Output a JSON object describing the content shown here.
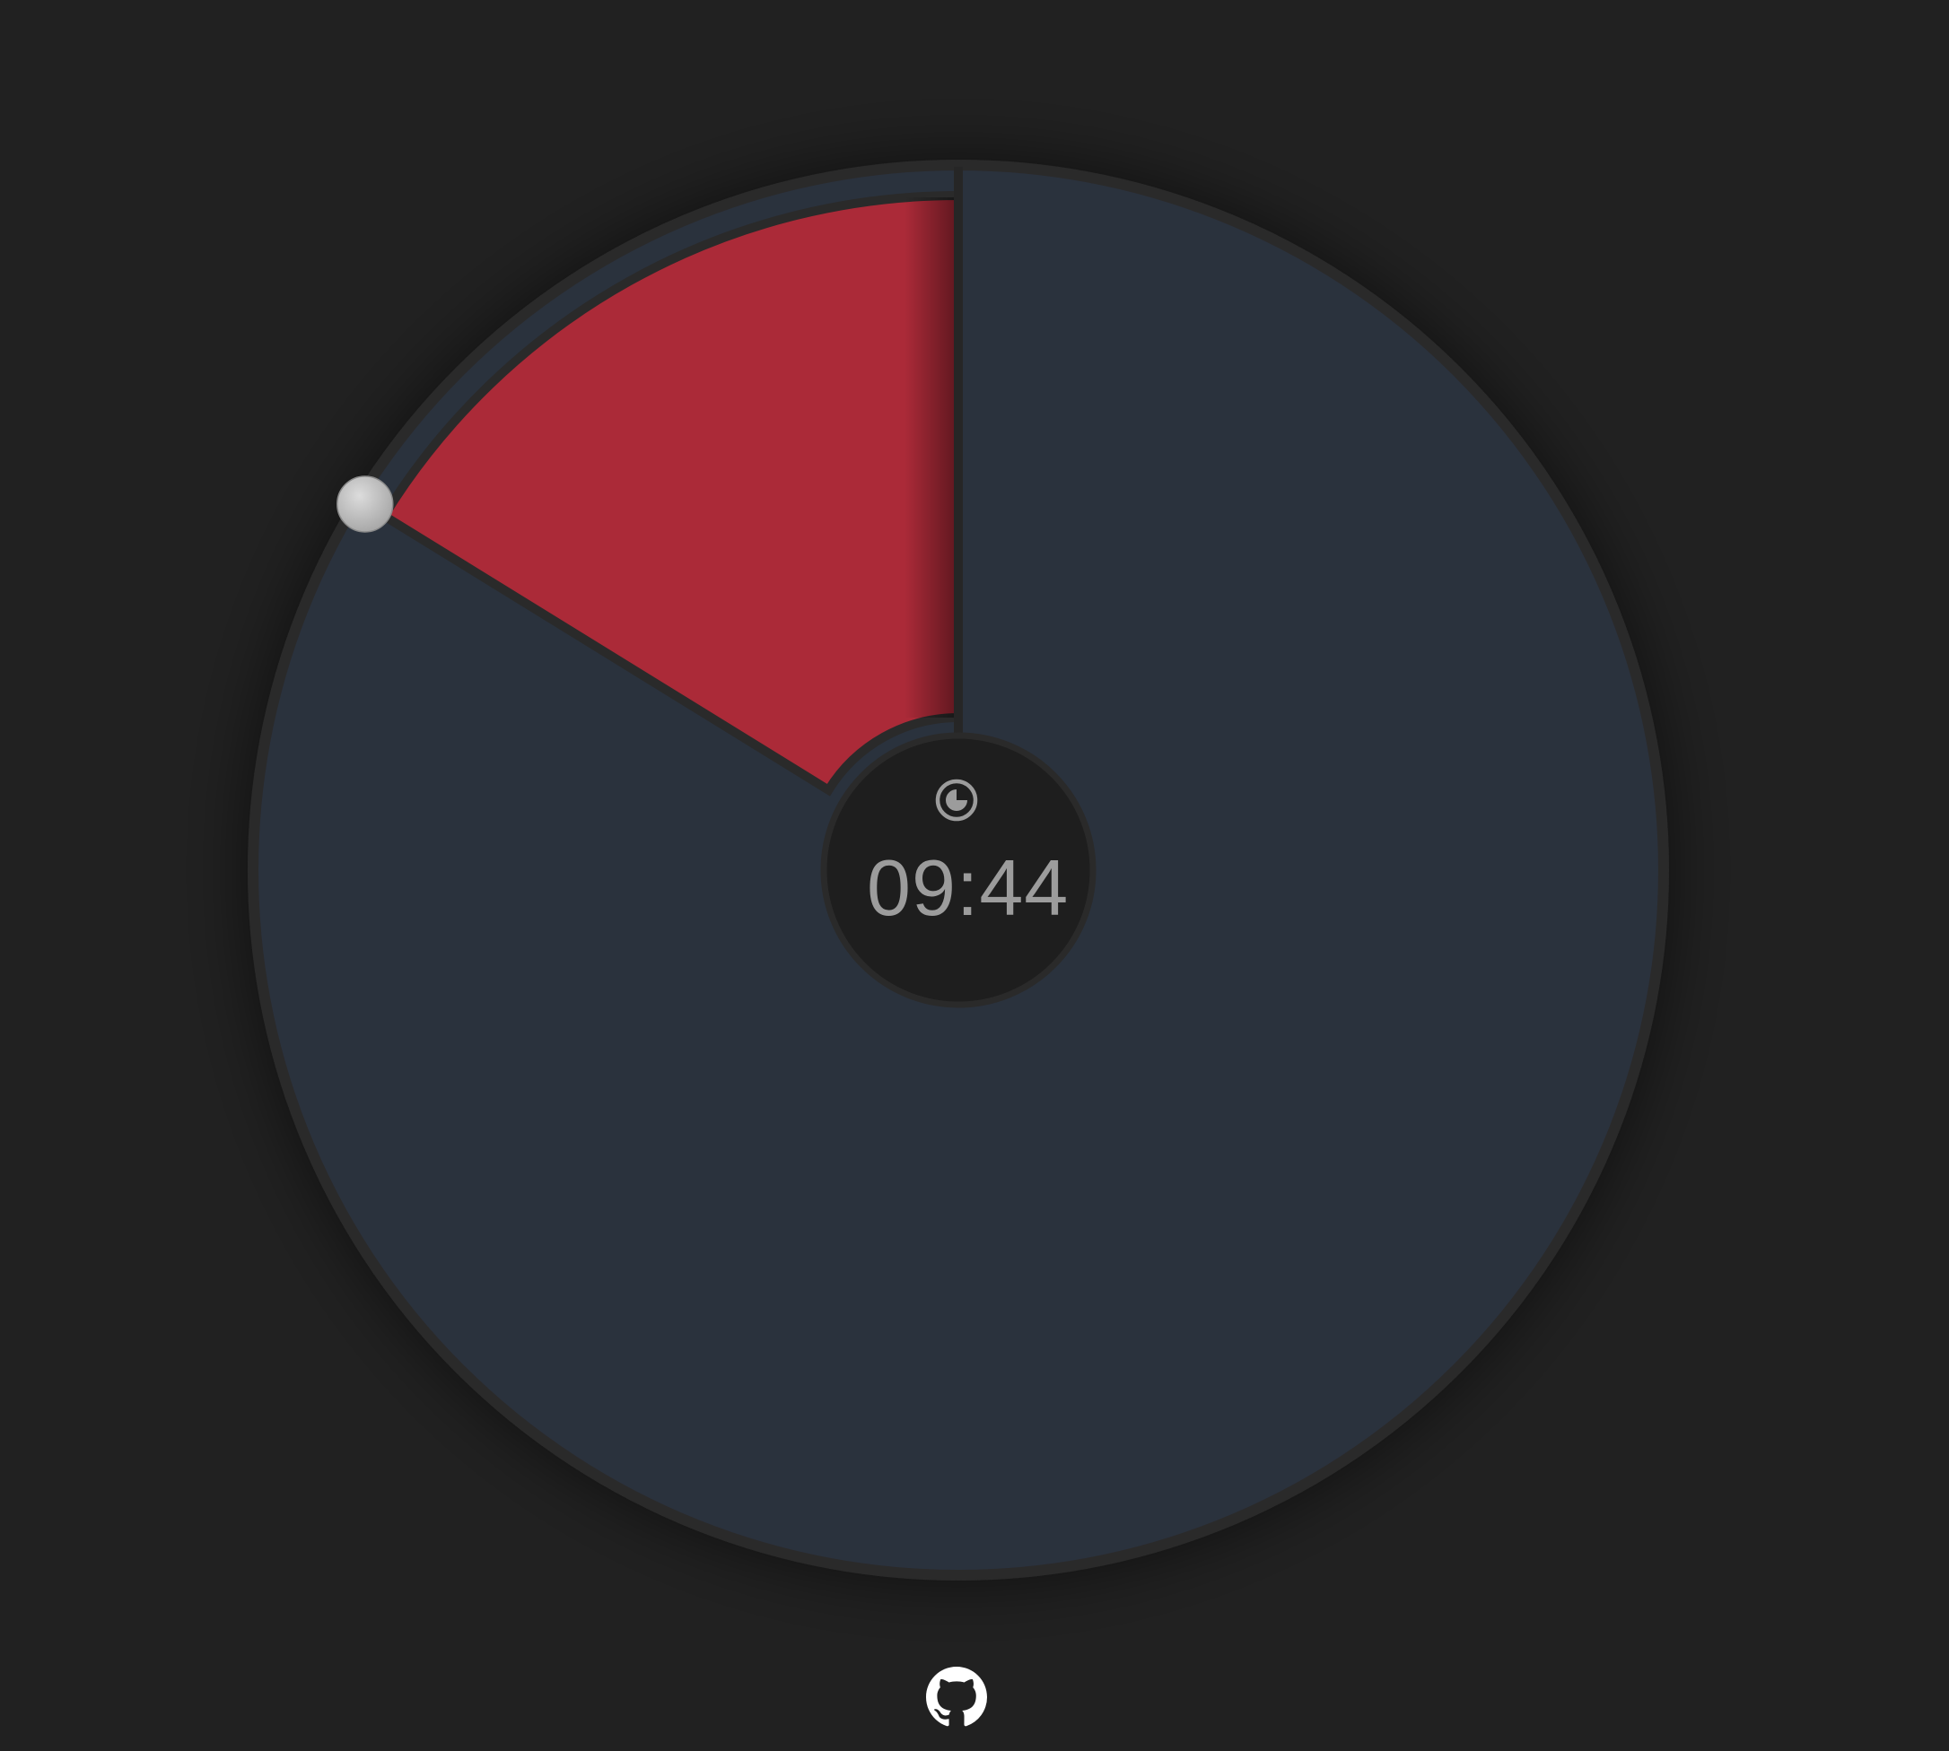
{
  "timer": {
    "time_display": "09:44",
    "remaining_fraction": 0.162,
    "max_minutes": 60
  },
  "icons": {
    "center_icon": "clock-icon",
    "footer_icon": "github-icon"
  },
  "colors": {
    "background": "#212121",
    "dial_face": "#2c313d",
    "dial_rim": "#2a2a2a",
    "remaining_sector": "#ab2a38",
    "hub": "#1e1e1e",
    "handle": "#c4c4c4",
    "time_text": "#9c9c9c"
  }
}
